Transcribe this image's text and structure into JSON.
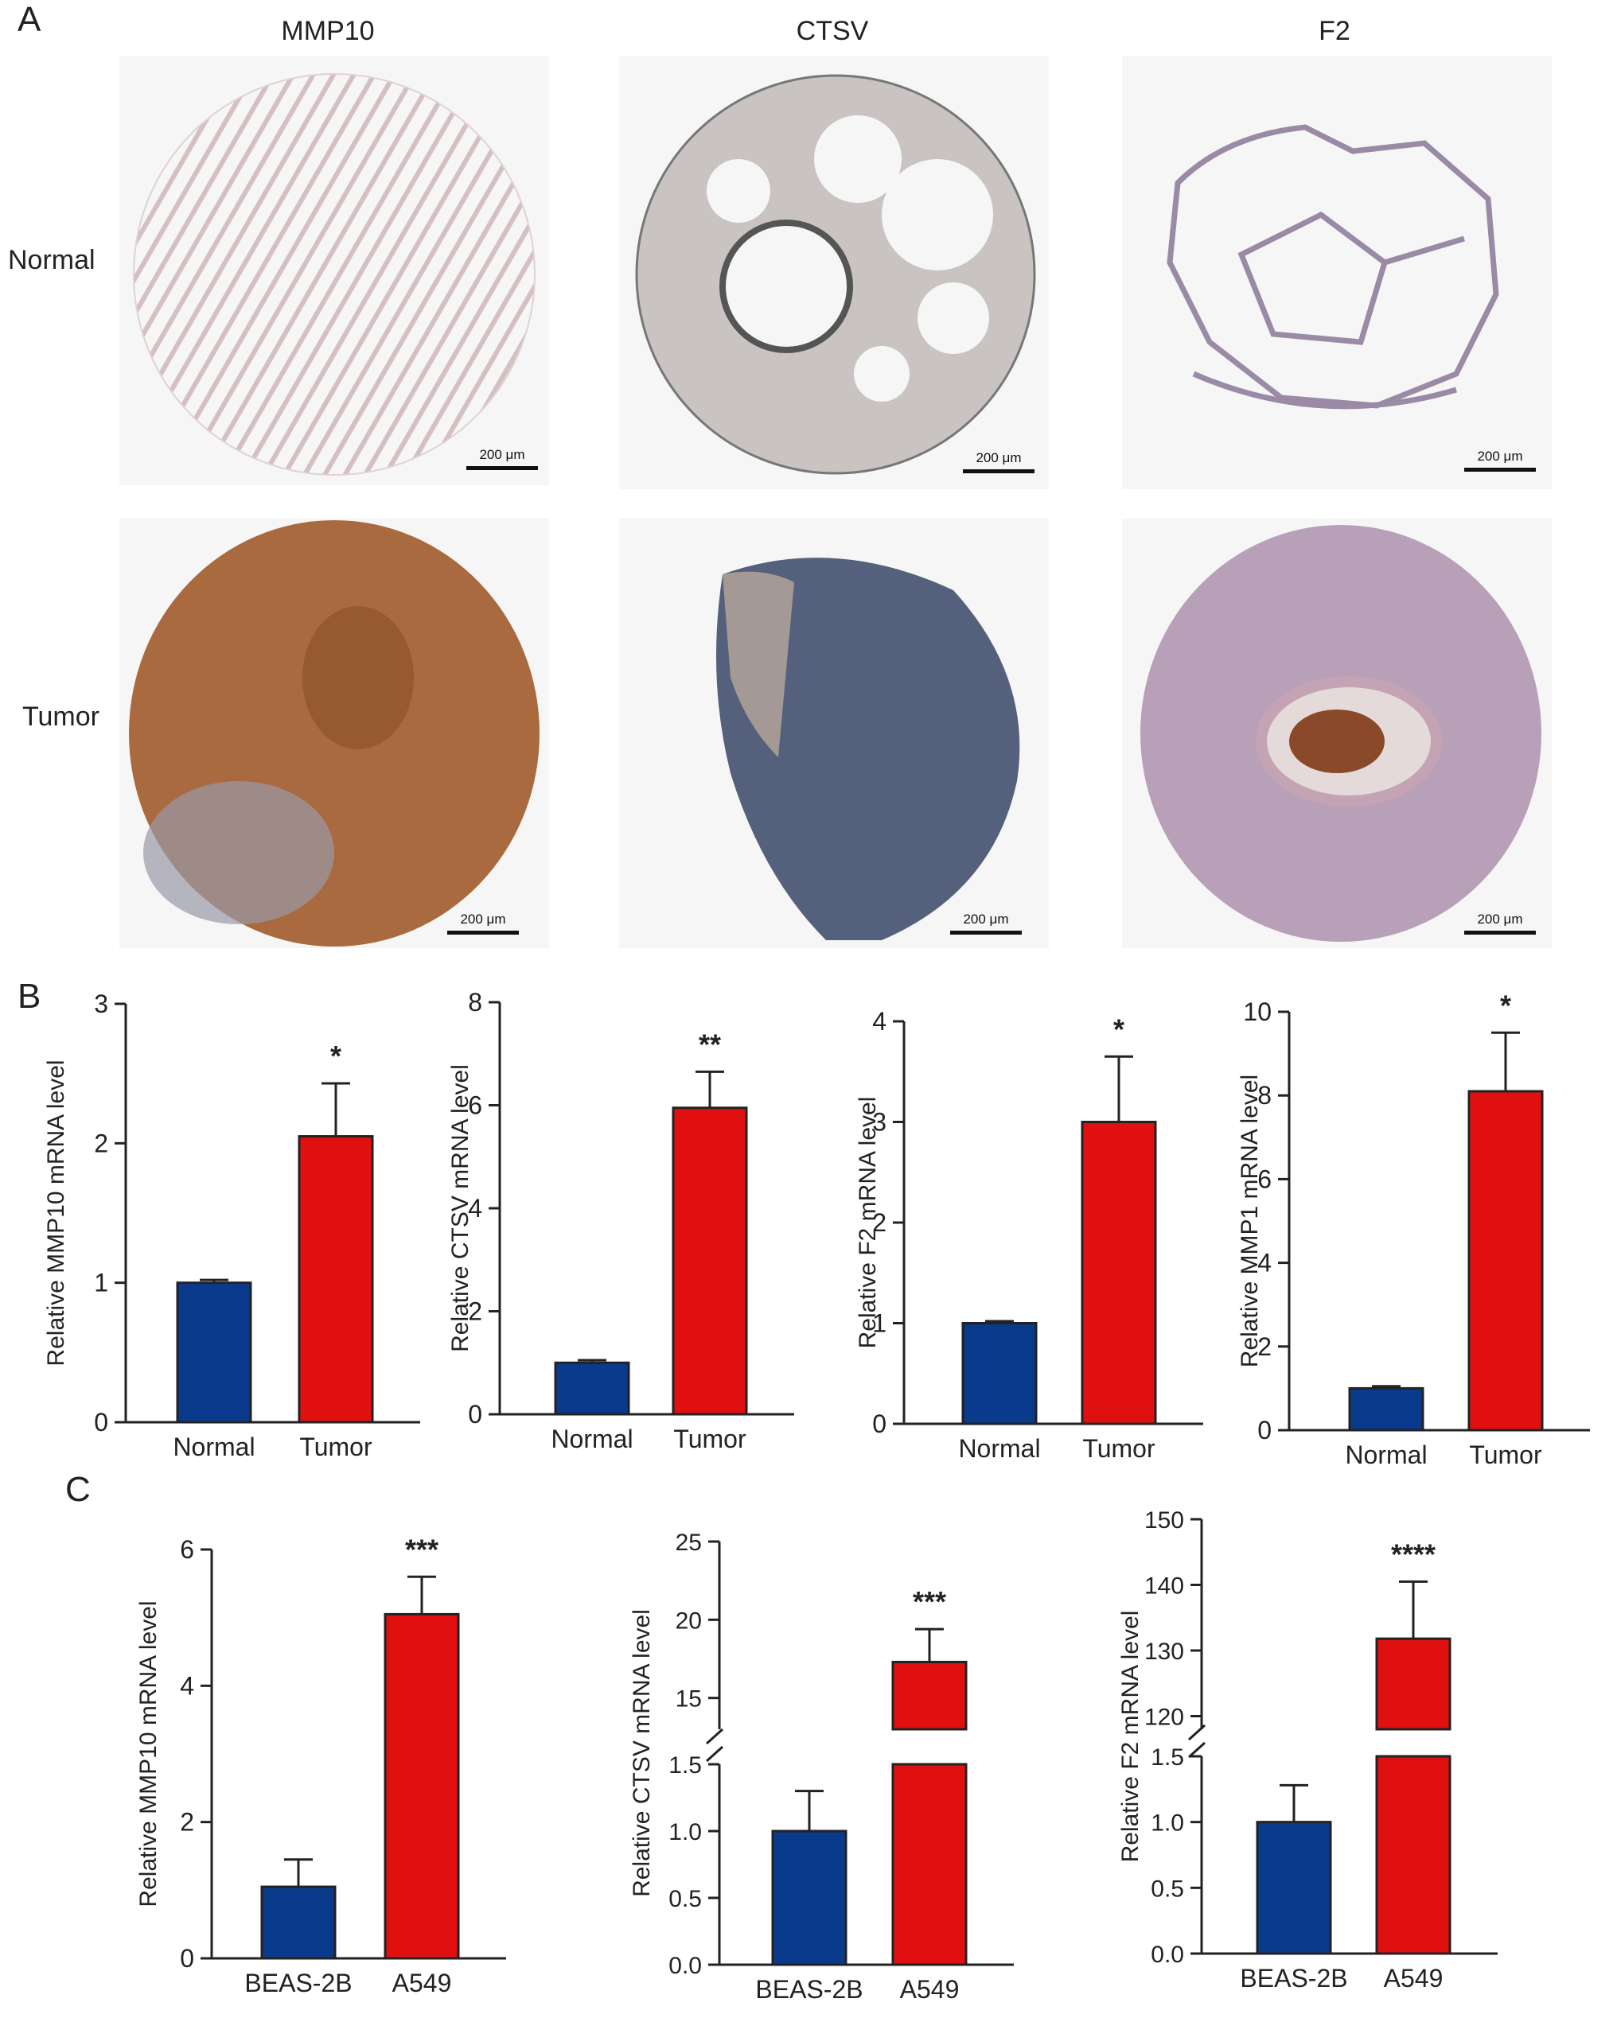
{
  "panels": {
    "a": "A",
    "b": "B",
    "c": "C"
  },
  "ihc": {
    "columns": [
      "MMP10",
      "CTSV",
      "F2"
    ],
    "rows": [
      "Normal",
      "Tumor"
    ],
    "scale_label": "200 μm"
  },
  "colors": {
    "normal_bar": "#0a3a8c",
    "tumor_bar": "#e01010",
    "normal_tissue": "#d9c8c8",
    "tumor_mmp10": "#a86a3e",
    "tumor_ctsv": "#4a5a7c",
    "tumor_f2": "#b8a0b8"
  },
  "chart_data": [
    {
      "type": "bar",
      "panel": "B",
      "categories": [
        "Normal",
        "Tumor"
      ],
      "values": [
        1.0,
        2.05
      ],
      "errors": [
        0.02,
        0.38
      ],
      "significance": [
        "",
        "*"
      ],
      "ylabel": "Relative MMP10 mRNA level",
      "ylim": [
        0,
        3
      ],
      "yticks": [
        "0",
        "1",
        "2",
        "3"
      ]
    },
    {
      "type": "bar",
      "panel": "B",
      "categories": [
        "Normal",
        "Tumor"
      ],
      "values": [
        1.0,
        5.95
      ],
      "errors": [
        0.05,
        0.7
      ],
      "significance": [
        "",
        "**"
      ],
      "ylabel": "Relative CTSV mRNA level",
      "ylim": [
        0,
        8
      ],
      "yticks": [
        "0",
        "2",
        "4",
        "6",
        "8"
      ]
    },
    {
      "type": "bar",
      "panel": "B",
      "categories": [
        "Normal",
        "Tumor"
      ],
      "values": [
        1.0,
        3.0
      ],
      "errors": [
        0.02,
        0.65
      ],
      "significance": [
        "",
        "*"
      ],
      "ylabel": "Relative F2 mRNA level",
      "ylim": [
        0,
        4
      ],
      "yticks": [
        "0",
        "1",
        "2",
        "3",
        "4"
      ]
    },
    {
      "type": "bar",
      "panel": "B",
      "categories": [
        "Normal",
        "Tumor"
      ],
      "values": [
        1.0,
        8.1
      ],
      "errors": [
        0.05,
        1.4
      ],
      "significance": [
        "",
        "*"
      ],
      "ylabel": "Relative MMP1 mRNA level",
      "ylim": [
        0,
        10
      ],
      "yticks": [
        "0",
        "2",
        "4",
        "6",
        "8",
        "10"
      ]
    },
    {
      "type": "bar",
      "panel": "C",
      "categories": [
        "BEAS-2B",
        "A549"
      ],
      "values": [
        1.05,
        5.05
      ],
      "errors": [
        0.4,
        0.55
      ],
      "significance": [
        "",
        "***"
      ],
      "ylabel": "Relative MMP10 mRNA level",
      "ylim": [
        0,
        6
      ],
      "yticks": [
        "0",
        "2",
        "4",
        "6"
      ]
    },
    {
      "type": "bar",
      "panel": "C",
      "broken_axis": true,
      "categories": [
        "BEAS-2B",
        "A549"
      ],
      "values": [
        1.0,
        17.3
      ],
      "errors": [
        0.3,
        2.1
      ],
      "significance": [
        "",
        "***"
      ],
      "ylabel": "Relative CTSV mRNA level",
      "lower_range": [
        0,
        1.5
      ],
      "upper_range": [
        13,
        25
      ],
      "lower_ticks": [
        "0.0",
        "0.5",
        "1.0",
        "1.5"
      ],
      "upper_ticks": [
        "15",
        "20",
        "25"
      ]
    },
    {
      "type": "bar",
      "panel": "C",
      "broken_axis": true,
      "categories": [
        "BEAS-2B",
        "A549"
      ],
      "values": [
        1.0,
        131.8
      ],
      "errors": [
        0.28,
        8.7
      ],
      "significance": [
        "",
        "****"
      ],
      "ylabel": "Relative F2 mRNA level",
      "lower_range": [
        0,
        1.5
      ],
      "upper_range": [
        118,
        150
      ],
      "lower_ticks": [
        "0.0",
        "0.5",
        "1.0",
        "1.5"
      ],
      "upper_ticks": [
        "120",
        "130",
        "140",
        "150"
      ]
    }
  ]
}
